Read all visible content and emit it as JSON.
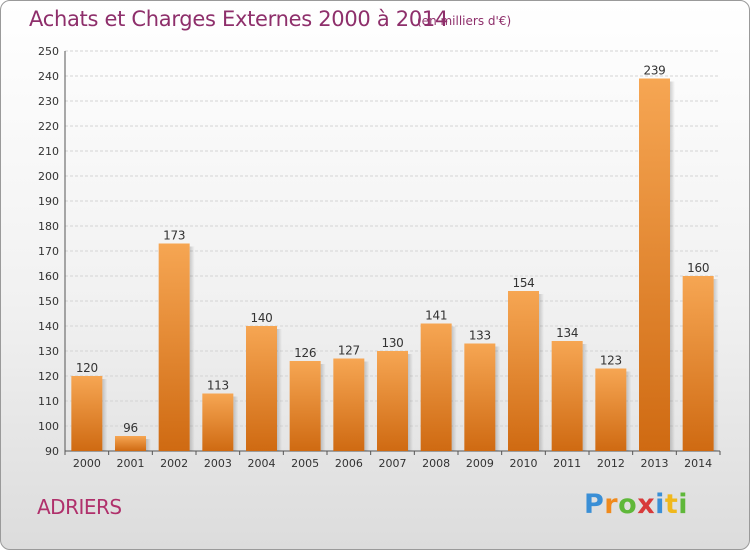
{
  "title": "Achats et Charges Externes 2000 à 2014",
  "subtitle": "(en milliers d'€)",
  "commune": "ADRIERS",
  "logo": {
    "text": "Proxiti",
    "letter_colors": [
      "#3a8fd6",
      "#f08a1c",
      "#5fb83a",
      "#d83a3a",
      "#3a8fd6",
      "#f0b81c",
      "#5fb83a"
    ]
  },
  "colors": {
    "bar_top": "#f6a653",
    "bar_bottom": "#cf6a12",
    "title": "#8e2f6b",
    "commune": "#b0306b",
    "grid": "#d4d4d4"
  },
  "chart_data": {
    "type": "bar",
    "categories": [
      "2000",
      "2001",
      "2002",
      "2003",
      "2004",
      "2005",
      "2006",
      "2007",
      "2008",
      "2009",
      "2010",
      "2011",
      "2012",
      "2013",
      "2014"
    ],
    "values": [
      120,
      96,
      173,
      113,
      140,
      126,
      127,
      130,
      141,
      133,
      154,
      134,
      123,
      239,
      160
    ],
    "ylim": [
      90,
      250
    ],
    "yticks": [
      90,
      100,
      110,
      120,
      130,
      140,
      150,
      160,
      170,
      180,
      190,
      200,
      210,
      220,
      230,
      240,
      250
    ],
    "grid": true,
    "data_labels": true
  }
}
